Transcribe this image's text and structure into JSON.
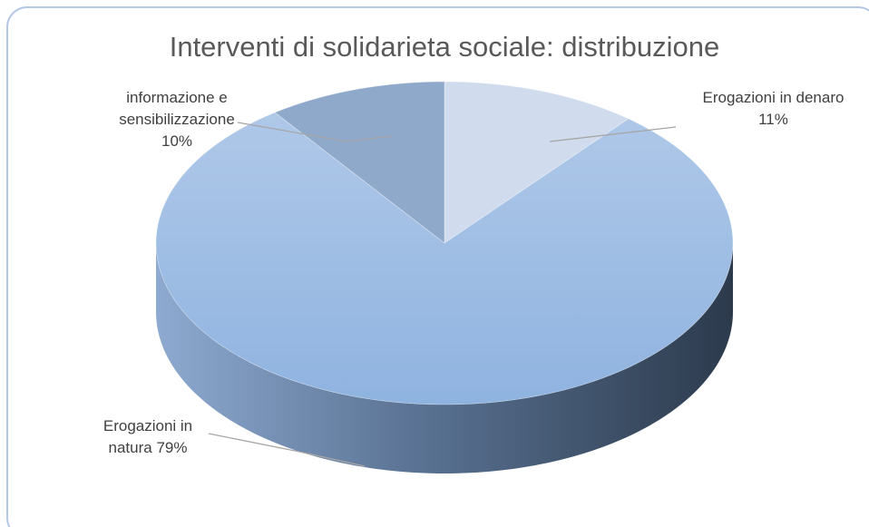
{
  "chart_data": {
    "type": "pie",
    "title": "Interventi di solidarieta sociale: distribuzione",
    "categories": [
      "Erogazioni in denaro",
      "Erogazioni in natura",
      "informazione e sensibilizzazione"
    ],
    "values": [
      11,
      79,
      10
    ],
    "value_labels": [
      "11%",
      "79%",
      "10%"
    ],
    "colors": [
      "#d0dcee",
      "#a4c1e6",
      "#8fa9cb"
    ]
  }
}
